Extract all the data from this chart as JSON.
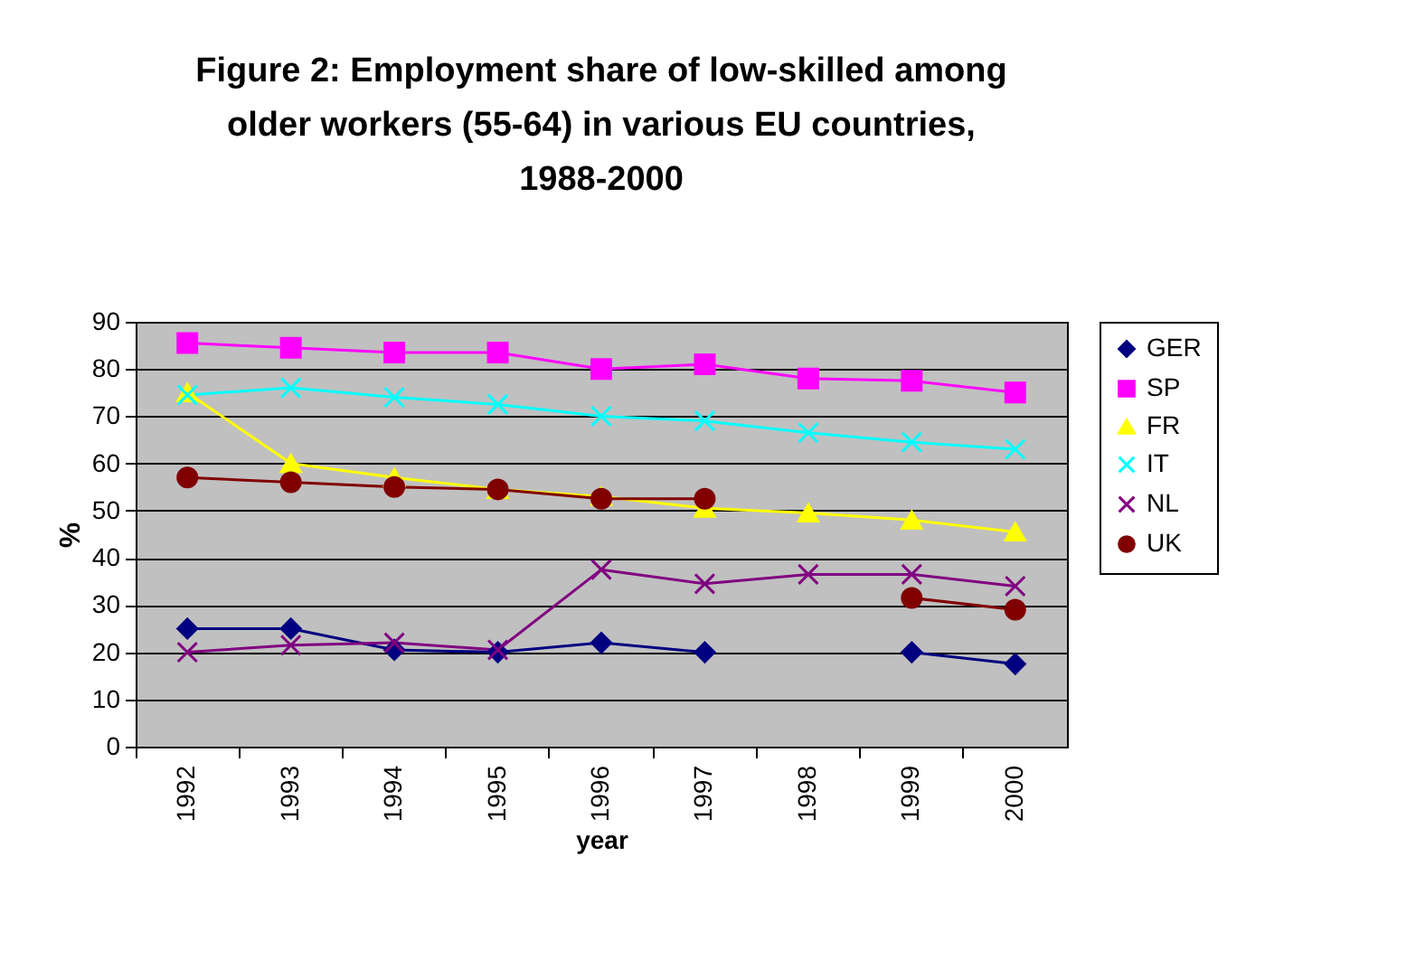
{
  "chart_data": {
    "type": "line",
    "title": "Figure 2: Employment share of low-skilled among older workers (55-64) in various EU countries, 1988-2000",
    "xlabel": "year",
    "ylabel": "%",
    "categories": [
      "1992",
      "1993",
      "1994",
      "1995",
      "1996",
      "1997",
      "1998",
      "1999",
      "2000"
    ],
    "series": [
      {
        "name": "GER",
        "color": "#000080",
        "marker": "diamond",
        "values": [
          25,
          25,
          20.5,
          20,
          22,
          20,
          null,
          20,
          17.5
        ]
      },
      {
        "name": "SP",
        "color": "#ff00ff",
        "marker": "square",
        "values": [
          85.5,
          84.5,
          83.5,
          83.5,
          80,
          81,
          78,
          77.5,
          75
        ]
      },
      {
        "name": "FR",
        "color": "#ffff00",
        "marker": "triangle",
        "values": [
          75,
          60,
          57,
          54.5,
          53,
          50.5,
          49.5,
          48,
          45.5
        ]
      },
      {
        "name": "IT",
        "color": "#00ffff",
        "marker": "cross",
        "values": [
          74.5,
          76,
          74,
          72.5,
          70,
          69,
          66.5,
          64.5,
          63
        ]
      },
      {
        "name": "NL",
        "color": "#800080",
        "marker": "cross",
        "values": [
          20,
          21.5,
          22,
          20.5,
          37.5,
          34.5,
          36.5,
          36.5,
          34
        ]
      },
      {
        "name": "UK",
        "color": "#800000",
        "marker": "circle",
        "values": [
          57,
          56,
          55,
          54.5,
          52.5,
          52.5,
          null,
          31.5,
          29
        ]
      }
    ],
    "ylim": [
      0,
      90
    ],
    "yticks": [
      0,
      10,
      20,
      30,
      40,
      50,
      60,
      70,
      80,
      90
    ],
    "grid": "y",
    "legend": "right"
  }
}
